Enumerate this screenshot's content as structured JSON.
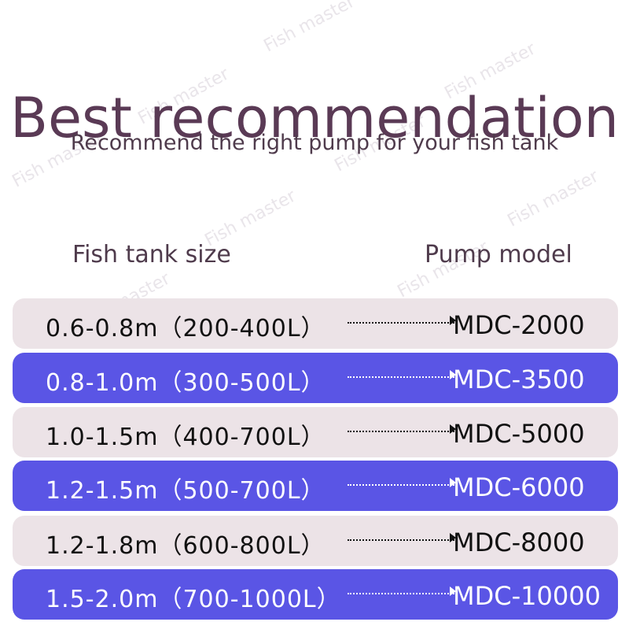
{
  "watermark": "Fish master",
  "title": "Best recommendation",
  "subtitle": "Recommend the right pump for your fish tank",
  "headers": {
    "size": "Fish tank size",
    "pump": "Pump model"
  },
  "rows": [
    {
      "size": "0.6-0.8m（200-400L）",
      "pump": "MDC-2000"
    },
    {
      "size": "0.8-1.0m（300-500L）",
      "pump": "MDC-3500"
    },
    {
      "size": "1.0-1.5m（400-700L）",
      "pump": "MDC-5000"
    },
    {
      "size": "1.2-1.5m（500-700L）",
      "pump": "MDC-6000"
    },
    {
      "size": "1.2-1.8m（600-800L）",
      "pump": "MDC-8000"
    },
    {
      "size": "1.5-2.0m（700-1000L）",
      "pump": "MDC-10000"
    }
  ],
  "colors": {
    "light_row": "#ece3e7",
    "dark_row": "#5a55e5",
    "title": "#5a3a55"
  }
}
